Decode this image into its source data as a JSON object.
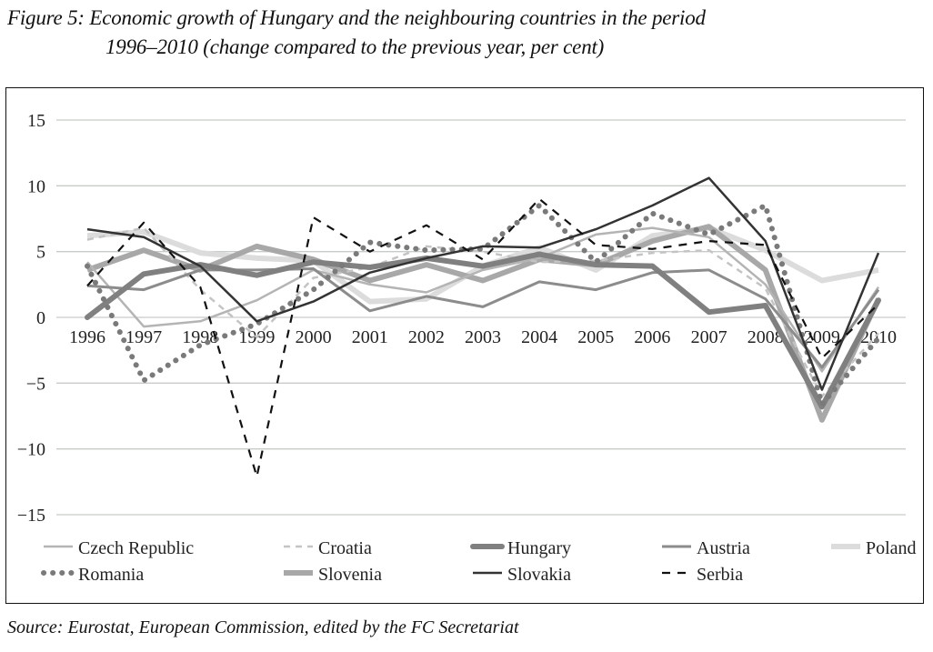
{
  "caption": {
    "line1": "Figure 5: Economic growth of Hungary and the neighbouring countries in the period",
    "line2": "1996–2010 (change compared to the previous year, per cent)"
  },
  "source": "Source: Eurostat, European Commission, edited by the FC Secretariat",
  "chart_data": {
    "type": "line",
    "title": "Economic growth of Hungary and the neighbouring countries in the period 1996–2010 (change compared to the previous year, per cent)",
    "xlabel": "",
    "ylabel": "",
    "x": [
      "1996",
      "1997",
      "1998",
      "1999",
      "2000",
      "2001",
      "2002",
      "2003",
      "2004",
      "2005",
      "2006",
      "2007",
      "2008",
      "2009",
      "2010"
    ],
    "ylim": [
      -15,
      15
    ],
    "yticks": [
      15,
      10,
      5,
      0,
      -5,
      -10,
      -15
    ],
    "ytick_labels": [
      "15",
      "10",
      "5",
      "0",
      "−5",
      "−10",
      "−15"
    ],
    "grid": true,
    "legend_position": "bottom",
    "series": [
      {
        "name": "Czech Republic",
        "style": "solid-thin",
        "color": "#b4b4b4",
        "values": [
          4.2,
          -0.7,
          -0.3,
          1.3,
          3.6,
          2.5,
          1.9,
          3.6,
          4.5,
          6.3,
          6.8,
          6.1,
          2.5,
          -4.1,
          2.3
        ]
      },
      {
        "name": "Croatia",
        "style": "dashed-light",
        "color": "#c4c4c4",
        "values": [
          5.9,
          6.8,
          2.1,
          -1.5,
          3.0,
          3.8,
          5.4,
          5.0,
          4.2,
          4.3,
          4.9,
          5.1,
          2.2,
          -6.0,
          -1.2
        ]
      },
      {
        "name": "Hungary",
        "style": "solid-thick",
        "color": "#808080",
        "values": [
          0.0,
          3.3,
          4.0,
          3.2,
          4.2,
          3.8,
          4.5,
          3.9,
          4.8,
          4.0,
          3.9,
          0.4,
          0.9,
          -6.8,
          1.3
        ]
      },
      {
        "name": "Austria",
        "style": "solid-medium",
        "color": "#8c8c8c",
        "values": [
          2.4,
          2.1,
          3.6,
          3.6,
          3.7,
          0.5,
          1.6,
          0.8,
          2.7,
          2.1,
          3.4,
          3.6,
          1.4,
          -3.8,
          2.1
        ]
      },
      {
        "name": "Poland",
        "style": "solid-thick-verylight",
        "color": "#dcdcdc",
        "values": [
          6.2,
          6.5,
          4.9,
          4.5,
          4.3,
          1.2,
          1.4,
          3.9,
          5.3,
          3.6,
          6.2,
          6.8,
          5.1,
          2.8,
          3.6
        ]
      },
      {
        "name": "Romania",
        "style": "dotted-thick",
        "color": "#7a7a7a",
        "values": [
          3.9,
          -4.8,
          -2.1,
          -0.5,
          2.1,
          5.7,
          5.1,
          5.2,
          8.5,
          4.2,
          7.9,
          6.3,
          8.5,
          -6.6,
          -1.6
        ]
      },
      {
        "name": "Slovenia",
        "style": "solid-thick-light",
        "color": "#a8a8a8",
        "values": [
          3.6,
          5.1,
          3.6,
          5.4,
          4.4,
          2.8,
          4.0,
          2.8,
          4.4,
          4.0,
          5.8,
          6.9,
          3.6,
          -7.8,
          1.4
        ]
      },
      {
        "name": "Slovakia",
        "style": "solid-dark",
        "color": "#333333",
        "values": [
          6.7,
          6.1,
          3.9,
          -0.3,
          1.2,
          3.4,
          4.5,
          5.4,
          5.3,
          6.7,
          8.5,
          10.6,
          5.8,
          -5.5,
          4.9
        ]
      },
      {
        "name": "Serbia",
        "style": "dashed-dark",
        "color": "#111111",
        "values": [
          2.4,
          7.2,
          2.3,
          -12.1,
          7.6,
          5.0,
          7.0,
          4.4,
          9.0,
          5.5,
          5.2,
          5.8,
          5.5,
          -3.1,
          1.0
        ]
      }
    ]
  }
}
